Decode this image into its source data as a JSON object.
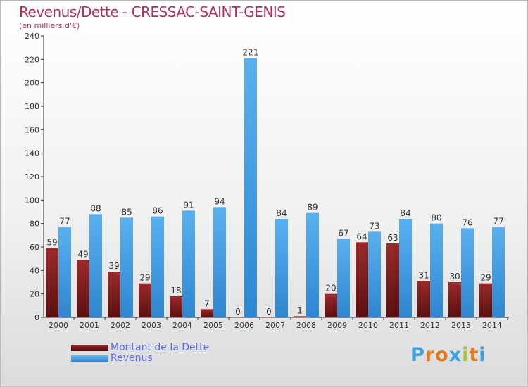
{
  "header": {
    "title": "Revenus/Dette - CRESSAC-SAINT-GENIS",
    "subtitle": "(en milliers d'€)"
  },
  "colors": {
    "debt": "#8b1a1a",
    "revenue": "#4aa3e6",
    "title": "#b03060",
    "legend_text": "#5b6be8"
  },
  "legend": {
    "items": [
      {
        "label": "Montant de la Dette",
        "color": "#8b1a1a"
      },
      {
        "label": "Revenus",
        "color": "#4aa3e6"
      }
    ]
  },
  "logo": {
    "text": "Proxiti"
  },
  "chart_data": {
    "type": "bar",
    "title": "Revenus/Dette - CRESSAC-SAINT-GENIS",
    "ylabel": "(en milliers d'€)",
    "xlabel": "",
    "ylim": [
      0,
      240
    ],
    "yticks": [
      0,
      20,
      40,
      60,
      80,
      100,
      120,
      140,
      160,
      180,
      200,
      220,
      240
    ],
    "grid": false,
    "legend_position": "bottom-left",
    "categories": [
      "2000",
      "2001",
      "2002",
      "2003",
      "2004",
      "2005",
      "2006",
      "2007",
      "2008",
      "2009",
      "2010",
      "2011",
      "2012",
      "2013",
      "2014"
    ],
    "series": [
      {
        "name": "Montant de la Dette",
        "values": [
          59,
          49,
          39,
          29,
          18,
          7,
          0,
          0,
          1,
          20,
          64,
          63,
          31,
          30,
          29
        ]
      },
      {
        "name": "Revenus",
        "values": [
          77,
          88,
          85,
          86,
          91,
          94,
          221,
          84,
          89,
          67,
          73,
          84,
          80,
          76,
          77
        ]
      }
    ]
  }
}
